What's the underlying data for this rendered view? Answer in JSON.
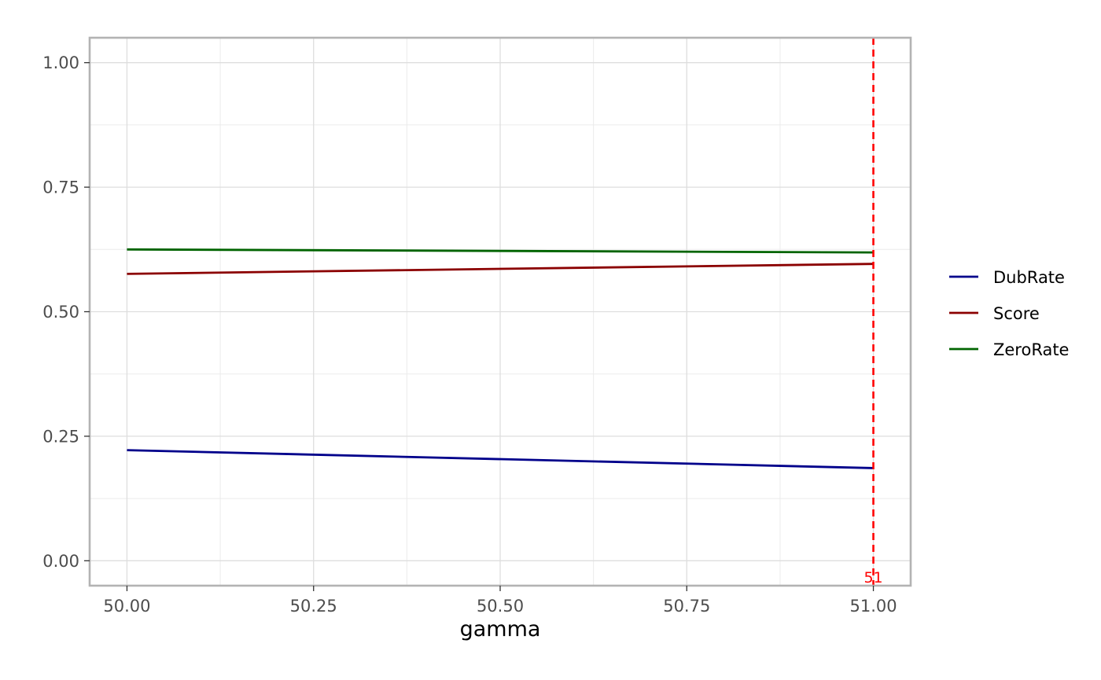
{
  "chart_data": {
    "type": "line",
    "xlabel": "gamma",
    "ylabel": "",
    "xlim": [
      49.95,
      51.05
    ],
    "ylim": [
      -0.05,
      1.05
    ],
    "x_ticks": [
      50.0,
      50.25,
      50.5,
      50.75,
      51.0
    ],
    "x_tick_labels": [
      "50.00",
      "50.25",
      "50.50",
      "50.75",
      "51.00"
    ],
    "y_ticks": [
      0.0,
      0.25,
      0.5,
      0.75,
      1.0
    ],
    "y_tick_labels": [
      "0.00",
      "0.25",
      "0.50",
      "0.75",
      "1.00"
    ],
    "grid": true,
    "legend_position": "right",
    "series": [
      {
        "name": "DubRate",
        "color": "#00008b",
        "x": [
          50.0,
          51.0
        ],
        "y": [
          0.222,
          0.186
        ]
      },
      {
        "name": "Score",
        "color": "#8b0000",
        "x": [
          50.0,
          51.0
        ],
        "y": [
          0.576,
          0.596
        ]
      },
      {
        "name": "ZeroRate",
        "color": "#006400",
        "x": [
          50.0,
          51.0
        ],
        "y": [
          0.625,
          0.619
        ]
      }
    ],
    "vline": {
      "x": 51.0,
      "label": "51",
      "color": "#ff0000",
      "style": "dashed"
    }
  }
}
